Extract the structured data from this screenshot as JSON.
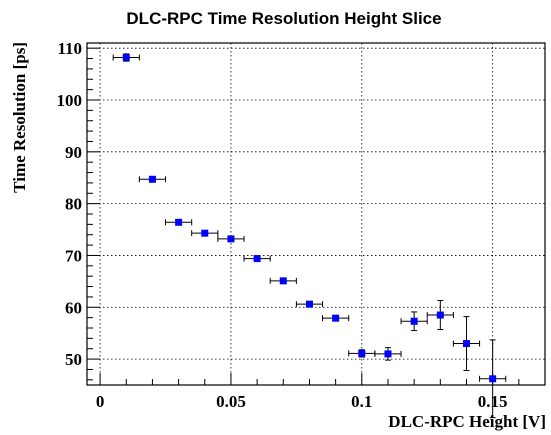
{
  "chart_data": {
    "type": "scatter",
    "title": "DLC-RPC Time Resolution Height Slice",
    "xlabel": "DLC-RPC Height [V]",
    "ylabel": "Time Resolution [ps]",
    "xlim": [
      -0.005,
      0.17
    ],
    "ylim": [
      45,
      111
    ],
    "grid": true,
    "x_ticks": [
      0,
      0.05,
      0.1,
      0.15
    ],
    "x_tick_labels": [
      "0",
      "0.05",
      "0.1",
      "0.15"
    ],
    "y_ticks": [
      50,
      60,
      70,
      80,
      90,
      100,
      110
    ],
    "y_tick_labels": [
      "50",
      "60",
      "70",
      "80",
      "90",
      "100",
      "110"
    ],
    "marker_color": "#0000ff",
    "points": [
      {
        "x": 0.01,
        "y": 108.2,
        "xerr": 0.005,
        "yerr": 0.7
      },
      {
        "x": 0.02,
        "y": 84.7,
        "xerr": 0.005,
        "yerr": 0.5
      },
      {
        "x": 0.03,
        "y": 76.4,
        "xerr": 0.005,
        "yerr": 0.4
      },
      {
        "x": 0.04,
        "y": 74.3,
        "xerr": 0.005,
        "yerr": 0.4
      },
      {
        "x": 0.05,
        "y": 73.2,
        "xerr": 0.005,
        "yerr": 0.4
      },
      {
        "x": 0.06,
        "y": 69.4,
        "xerr": 0.005,
        "yerr": 0.4
      },
      {
        "x": 0.07,
        "y": 65.1,
        "xerr": 0.005,
        "yerr": 0.4
      },
      {
        "x": 0.08,
        "y": 60.6,
        "xerr": 0.005,
        "yerr": 0.4
      },
      {
        "x": 0.09,
        "y": 57.9,
        "xerr": 0.005,
        "yerr": 0.5
      },
      {
        "x": 0.1,
        "y": 51.1,
        "xerr": 0.005,
        "yerr": 0.7
      },
      {
        "x": 0.11,
        "y": 51.0,
        "xerr": 0.005,
        "yerr": 1.2
      },
      {
        "x": 0.12,
        "y": 57.3,
        "xerr": 0.005,
        "yerr": 1.8
      },
      {
        "x": 0.13,
        "y": 58.5,
        "xerr": 0.005,
        "yerr": 2.8
      },
      {
        "x": 0.14,
        "y": 53.0,
        "xerr": 0.005,
        "yerr": 5.2
      },
      {
        "x": 0.15,
        "y": 46.2,
        "xerr": 0.005,
        "yerr": 7.5
      }
    ]
  }
}
